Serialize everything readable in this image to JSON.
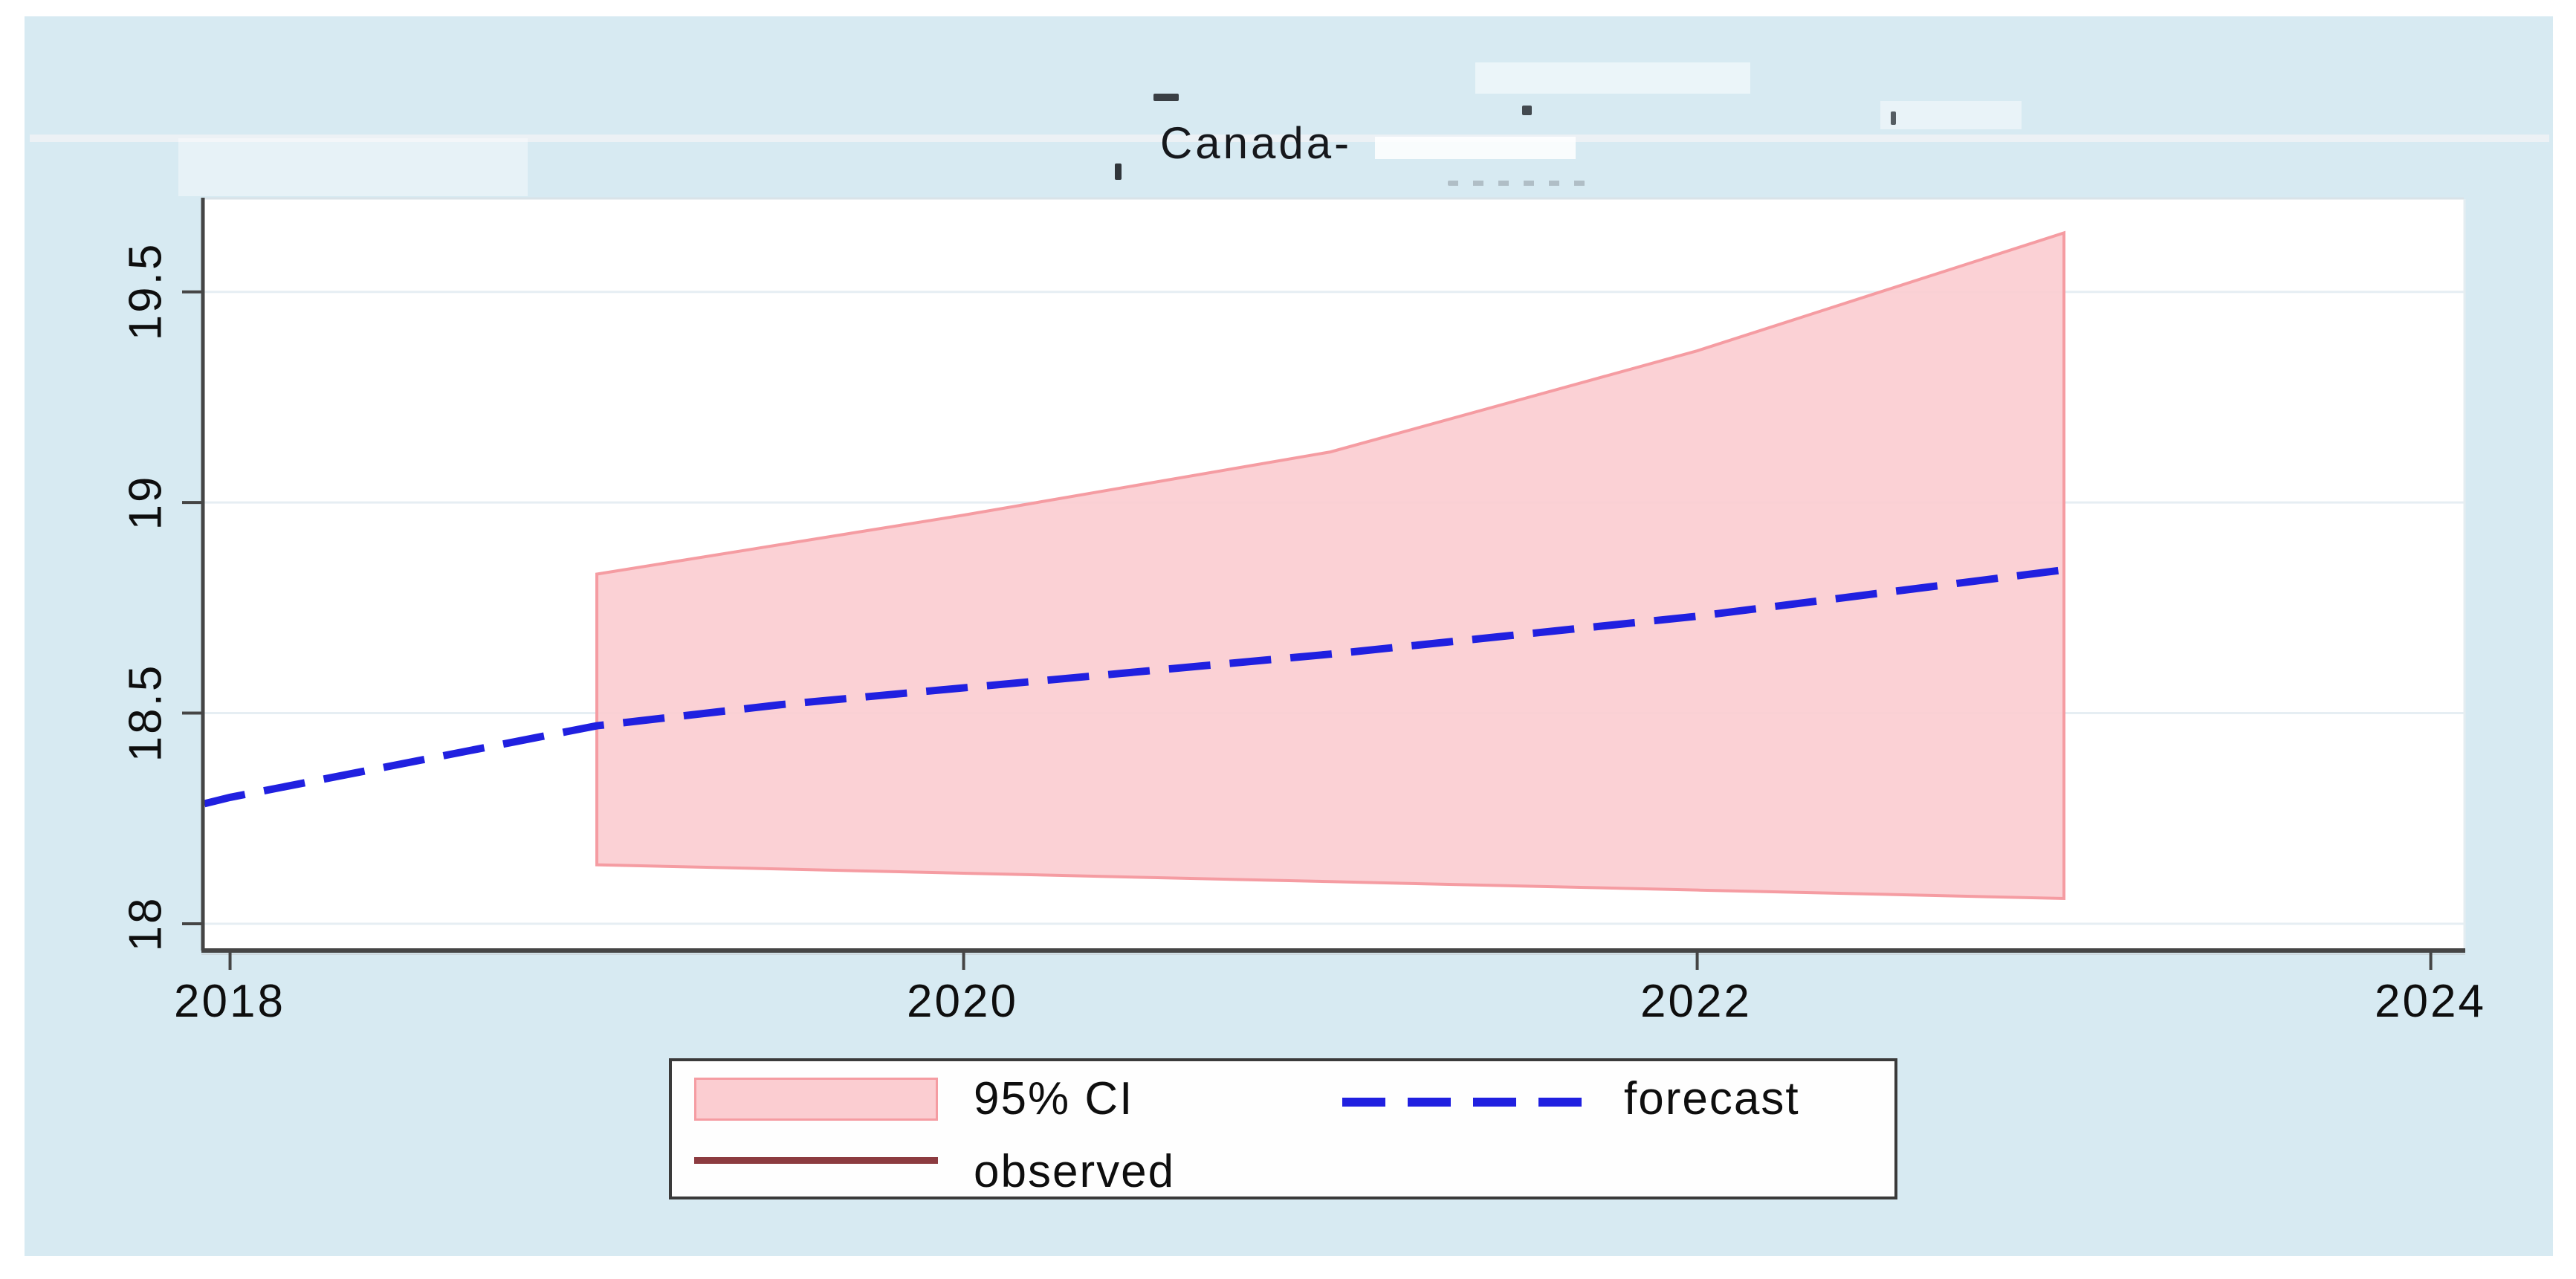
{
  "chart_data": {
    "type": "line",
    "subtype": "forecast-with-confidence-band",
    "title": "Canada-",
    "x_ticks": [
      2018,
      2020,
      2022,
      2024
    ],
    "x_tick_labels": [
      "2018",
      "2020",
      "2022",
      "2024"
    ],
    "y_ticks": [
      18,
      18.5,
      19,
      19.5
    ],
    "y_tick_labels": [
      "18",
      "18.5",
      "19",
      "19.5"
    ],
    "x_range": [
      2017.93,
      2024.09
    ],
    "y_range": [
      17.94,
      19.72
    ],
    "grid": true,
    "grid_color": "#e6eef3",
    "background_color": "#d7eaf2",
    "plot_background_color": "#ffffff",
    "axis_color": "#454545",
    "series": [
      {
        "name": "95% CI",
        "type": "band",
        "fill": "#fbcdd1",
        "border": "#f59ca2",
        "x": [
          2019,
          2020,
          2021,
          2022,
          2023
        ],
        "upper": [
          18.83,
          18.97,
          19.12,
          19.36,
          19.64
        ],
        "lower": [
          18.14,
          18.12,
          18.1,
          18.08,
          18.06
        ]
      },
      {
        "name": "forecast",
        "type": "line",
        "style": "dashed",
        "color": "#2020e0",
        "x": [
          2017.93,
          2018,
          2018.5,
          2019,
          2019.5,
          2020,
          2020.5,
          2021,
          2021.5,
          2022,
          2022.5,
          2023
        ],
        "y": [
          18.285,
          18.3,
          18.385,
          18.47,
          18.52,
          18.56,
          18.6,
          18.64,
          18.685,
          18.73,
          18.785,
          18.84
        ]
      },
      {
        "name": "observed",
        "type": "line",
        "style": "solid",
        "color": "#8c3b40",
        "x": [],
        "y": []
      }
    ],
    "legend": {
      "position": "bottom-center",
      "items": [
        {
          "label": "95% CI",
          "swatch": "filled-area"
        },
        {
          "label": "forecast",
          "swatch": "dashed-line"
        },
        {
          "label": "observed",
          "swatch": "solid-line"
        }
      ]
    }
  }
}
